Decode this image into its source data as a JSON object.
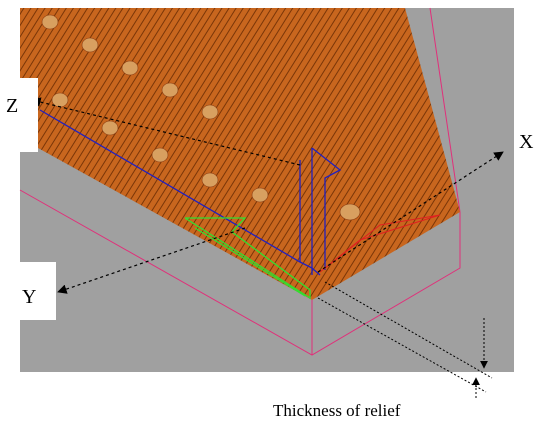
{
  "labels": {
    "z": "Z",
    "x": "X",
    "y": "Y",
    "thickness": "Thickness of relief"
  }
}
